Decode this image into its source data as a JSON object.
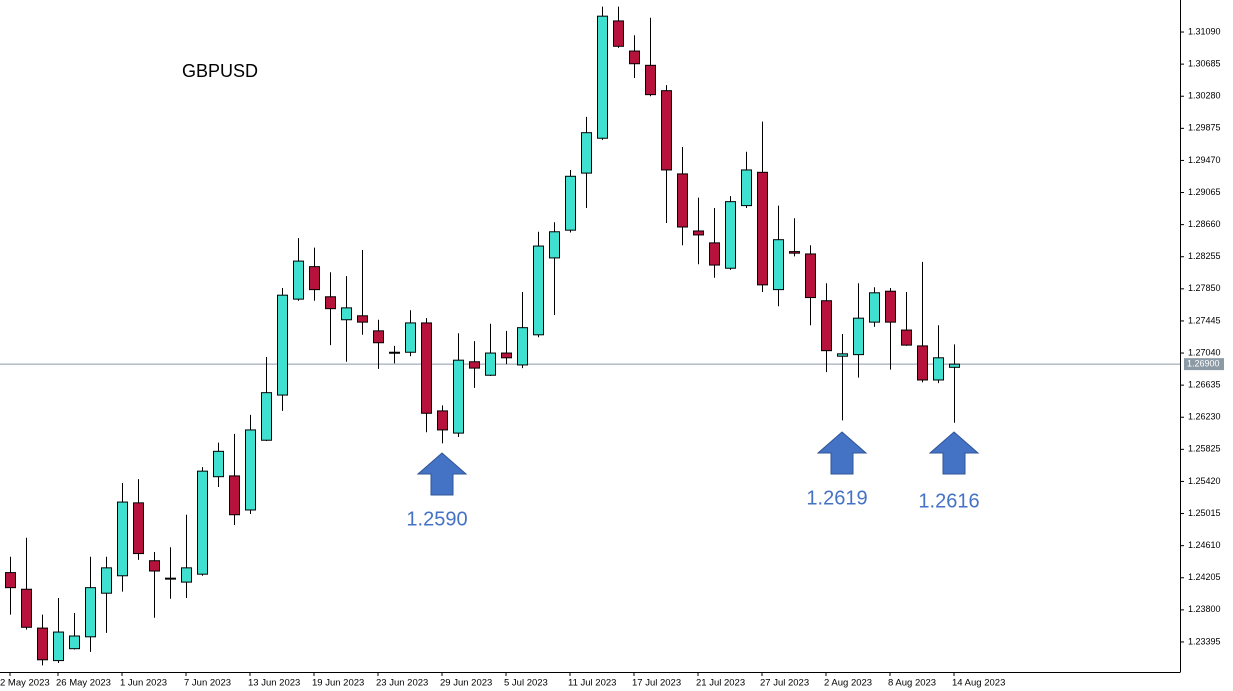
{
  "chart_data": {
    "type": "candlestick",
    "title": "GBPUSD",
    "categories": [
      "2 May 2023",
      null,
      null,
      "26 May 2023",
      null,
      null,
      null,
      "1 Jun 2023",
      null,
      null,
      null,
      "7 Jun 2023",
      null,
      null,
      null,
      "13 Jun 2023",
      null,
      null,
      null,
      "19 Jun 2023",
      null,
      null,
      null,
      "23 Jun 2023",
      null,
      null,
      null,
      "29 Jun 2023",
      null,
      null,
      null,
      "5 Jul 2023",
      null,
      null,
      null,
      "11 Jul 2023",
      null,
      null,
      null,
      "17 Jul 2023",
      null,
      null,
      null,
      "21 Jul 2023",
      null,
      null,
      null,
      "27 Jul 2023",
      null,
      null,
      null,
      "2 Aug 2023",
      null,
      null,
      null,
      "8 Aug 2023",
      null,
      null,
      null,
      "14 Aug 2023"
    ],
    "open": [
      1.2427,
      1.2406,
      1.2357,
      1.2316,
      1.2331,
      1.2346,
      1.2401,
      1.2423,
      1.2515,
      1.2442,
      1.242,
      1.2415,
      1.2425,
      1.2548,
      1.2549,
      1.2506,
      1.2594,
      1.2651,
      1.2772,
      1.2813,
      1.2775,
      1.2746,
      1.2751,
      1.2732,
      1.2705,
      1.2705,
      1.2742,
      1.2631,
      1.2603,
      1.2693,
      1.2676,
      1.2704,
      1.2689,
      1.2727,
      1.2824,
      1.2859,
      1.2931,
      1.2975,
      1.3123,
      1.3085,
      1.3067,
      1.3035,
      1.293,
      1.2858,
      1.2843,
      1.2811,
      1.289,
      1.2932,
      1.2784,
      1.2832,
      1.2829,
      1.277,
      1.27,
      1.2702,
      1.2743,
      1.2782,
      1.2733,
      1.2713,
      1.267,
      1.2686
    ],
    "high": [
      1.2447,
      1.2471,
      1.2374,
      1.2395,
      1.2376,
      1.2447,
      1.2447,
      1.254,
      1.2545,
      1.2453,
      1.2459,
      1.25,
      1.256,
      1.2591,
      1.2602,
      1.2626,
      1.2699,
      1.2786,
      1.2849,
      1.2837,
      1.2806,
      1.2801,
      1.2834,
      1.2746,
      1.2713,
      1.2758,
      1.2748,
      1.2638,
      1.2729,
      1.2719,
      1.2741,
      1.2732,
      1.2781,
      1.2857,
      1.2869,
      1.2935,
      1.3002,
      1.3141,
      1.3141,
      1.3105,
      1.3127,
      1.3042,
      1.2964,
      1.29,
      1.2887,
      1.2902,
      1.2958,
      1.2996,
      1.289,
      1.2874,
      1.284,
      1.2792,
      1.2728,
      1.2792,
      1.2787,
      1.2786,
      1.2781,
      1.2819,
      1.2739,
      1.2715
    ],
    "low": [
      1.2374,
      1.2355,
      1.231,
      1.2313,
      1.233,
      1.2327,
      1.2351,
      1.2403,
      1.2443,
      1.237,
      1.2394,
      1.2395,
      1.2423,
      1.2535,
      1.2487,
      1.2501,
      1.2593,
      1.2631,
      1.277,
      1.277,
      1.2714,
      1.2693,
      1.2727,
      1.2684,
      1.2691,
      1.27,
      1.2604,
      1.259,
      1.2598,
      1.266,
      1.2675,
      1.269,
      1.2685,
      1.2724,
      1.2752,
      1.2856,
      1.2887,
      1.2973,
      1.3089,
      1.3051,
      1.3028,
      1.2868,
      1.284,
      1.2816,
      1.2799,
      1.2809,
      1.2887,
      1.2781,
      1.2763,
      1.2826,
      1.2739,
      1.268,
      1.2619,
      1.2673,
      1.2737,
      1.2683,
      1.2713,
      1.2667,
      1.2666,
      1.2616
    ],
    "close": [
      1.2408,
      1.2358,
      1.2317,
      1.2352,
      1.2347,
      1.2408,
      1.2433,
      1.2516,
      1.2451,
      1.2429,
      1.2419,
      1.2433,
      1.2555,
      1.258,
      1.25,
      1.2607,
      1.2654,
      1.2777,
      1.282,
      1.2784,
      1.276,
      1.2761,
      1.2743,
      1.2717,
      1.2704,
      1.2742,
      1.2628,
      1.2607,
      1.2695,
      1.2685,
      1.2704,
      1.2698,
      1.2736,
      1.2839,
      1.2857,
      1.2927,
      1.2982,
      1.3129,
      1.3091,
      1.3069,
      1.303,
      1.2935,
      1.2863,
      1.2853,
      1.2815,
      1.2895,
      1.2935,
      1.279,
      1.2847,
      1.283,
      1.2774,
      1.2707,
      1.2703,
      1.2748,
      1.278,
      1.2743,
      1.2714,
      1.267,
      1.2698,
      1.269
    ],
    "up_color": "#40e0d0",
    "down_color": "#b5123c",
    "ylim": [
      1.23016,
      1.31494
    ],
    "yticks": [
      {
        "value": 1.3109,
        "label": "1.31090"
      },
      {
        "value": 1.30685,
        "label": "1.30685"
      },
      {
        "value": 1.3028,
        "label": "1.30280"
      },
      {
        "value": 1.29875,
        "label": "1.29875"
      },
      {
        "value": 1.2947,
        "label": "1.29470"
      },
      {
        "value": 1.29065,
        "label": "1.29065"
      },
      {
        "value": 1.2866,
        "label": "1.28660"
      },
      {
        "value": 1.28255,
        "label": "1.28255"
      },
      {
        "value": 1.2785,
        "label": "1.27850"
      },
      {
        "value": 1.27445,
        "label": "1.27445"
      },
      {
        "value": 1.2704,
        "label": "1.27040"
      },
      {
        "value": 1.26635,
        "label": "1.26635"
      },
      {
        "value": 1.2623,
        "label": "1.26230"
      },
      {
        "value": 1.25825,
        "label": "1.25825"
      },
      {
        "value": 1.2542,
        "label": "1.25420"
      },
      {
        "value": 1.25015,
        "label": "1.25015"
      },
      {
        "value": 1.2461,
        "label": "1.24610"
      },
      {
        "value": 1.24205,
        "label": "1.24205"
      },
      {
        "value": 1.238,
        "label": "1.23800"
      },
      {
        "value": 1.23395,
        "label": "1.23395"
      }
    ],
    "current_price": {
      "value": 1.269,
      "label": "1.26900"
    },
    "annotations": [
      "1.2590",
      "1.2619",
      "1.2616"
    ],
    "arrow_color": "#4472c4"
  }
}
